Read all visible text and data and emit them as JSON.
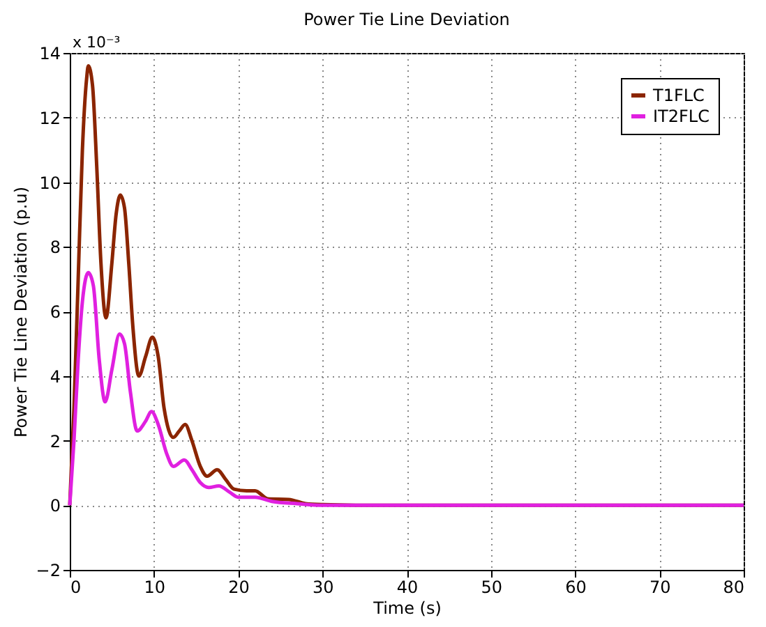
{
  "chart_data": {
    "type": "line",
    "title": "Power Tie Line Deviation",
    "xlabel": "Time (s)",
    "ylabel": "Power Tie Line Deviation (p.u)",
    "annotations": [
      "x 10⁻³"
    ],
    "xlim": [
      0,
      80
    ],
    "xticks": [
      0,
      10,
      20,
      30,
      40,
      50,
      60,
      70,
      80
    ],
    "ylim": [
      -2,
      14
    ],
    "yticks": [
      -2,
      0,
      2,
      4,
      6,
      8,
      10,
      12,
      14
    ],
    "grid": true,
    "legend": "top right",
    "line_style": "solid",
    "marker": "none",
    "series": [
      {
        "name": "T1FLC",
        "color": "#8b2500",
        "x": [
          0,
          0.5,
          1,
          1.5,
          2,
          2.2,
          2.7,
          3.2,
          3.7,
          4.3,
          5,
          5.5,
          6,
          6.5,
          7,
          7.5,
          8.2,
          9,
          9.8,
          10.5,
          11.2,
          12.3,
          13,
          13.7,
          14.5,
          15.5,
          16.3,
          17.5,
          18.5,
          19.5,
          21,
          22,
          23.5,
          26,
          28,
          30,
          35,
          80
        ],
        "values": [
          0,
          3,
          7,
          11,
          13.2,
          13.6,
          13,
          10.5,
          7.5,
          5.8,
          7.5,
          9,
          9.6,
          9.2,
          7.5,
          5.5,
          4,
          4.6,
          5.2,
          4.6,
          3,
          2.1,
          2.3,
          2.5,
          2,
          1.2,
          0.9,
          1.1,
          0.8,
          0.5,
          0.45,
          0.45,
          0.2,
          0.18,
          0.05,
          0.02,
          0,
          0
        ]
      },
      {
        "name": "IT2FLC",
        "color": "#e020e0",
        "x": [
          0,
          0.5,
          1,
          1.5,
          2.2,
          2.8,
          3.5,
          4.2,
          5,
          5.9,
          6.5,
          7.2,
          8,
          9,
          9.7,
          10.5,
          11.5,
          12.3,
          13.6,
          14.5,
          15.5,
          16.5,
          17.7,
          19,
          20,
          22,
          24,
          27,
          30,
          80
        ],
        "values": [
          0,
          2,
          4.5,
          6.3,
          7.2,
          6.8,
          4.5,
          3.2,
          4.2,
          5.3,
          5,
          3.5,
          2.3,
          2.6,
          2.9,
          2.5,
          1.6,
          1.2,
          1.4,
          1.1,
          0.7,
          0.55,
          0.6,
          0.4,
          0.25,
          0.25,
          0.12,
          0.05,
          0,
          0
        ]
      }
    ]
  }
}
